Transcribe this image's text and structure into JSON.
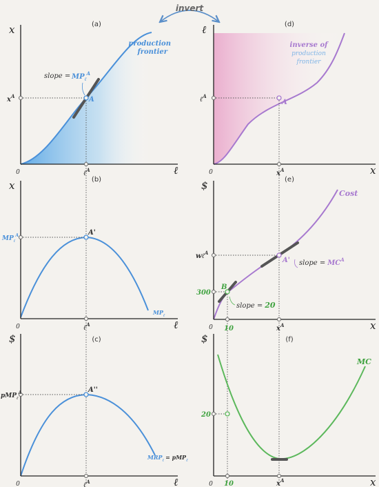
{
  "invert_label": "invert",
  "colors": {
    "blue": "#4a90d9",
    "purple": "#a779cf",
    "green": "#5cb85c"
  },
  "panels": {
    "a": {
      "label": "(a)",
      "y_axis": "x",
      "x_axis": "ℓ",
      "origin": "0",
      "curve_label_1": "production",
      "curve_label_2": "frontier",
      "slope_text": "slope =",
      "slope_mp": "MP",
      "slope_sub": "ℓ",
      "slope_sup": "A",
      "point": "A",
      "y_tick": "x",
      "y_tick_sup": "A",
      "x_tick": "ℓ",
      "x_tick_sup": "A"
    },
    "b": {
      "label": "(b)",
      "y_axis": "x",
      "x_axis": "ℓ",
      "origin": "0",
      "point": "A'",
      "y_tick": "MP",
      "y_tick_sub": "ℓ",
      "y_tick_sup": "A",
      "x_tick": "ℓ",
      "x_tick_sup": "A",
      "curve_label": "MP",
      "curve_sub": "ℓ"
    },
    "c": {
      "label": "(c)",
      "y_axis": "$",
      "x_axis": "ℓ",
      "origin": "0",
      "point": "A''",
      "y_tick": "pMP",
      "y_tick_sub": "ℓ",
      "y_tick_sup": "A",
      "x_tick": "ℓ",
      "x_tick_sup": "A",
      "curve_label_1": "MRP",
      "curve_label_sub": "ℓ",
      "curve_label_2": "= pMP",
      "curve_label_sub2": "ℓ"
    },
    "d": {
      "label": "(d)",
      "y_axis": "ℓ",
      "x_axis": "x",
      "origin": "0",
      "curve_label_1": "inverse of",
      "curve_label_2": "production",
      "curve_label_3": "frontier",
      "point": "A",
      "y_tick": "ℓ",
      "y_tick_sup": "A",
      "x_tick": "x",
      "x_tick_sup": "A"
    },
    "e": {
      "label": "(e)",
      "y_axis": "$",
      "x_axis": "x",
      "origin": "0",
      "curve_label": "Cost",
      "point_a": "A'",
      "point_b": "B",
      "y_tick_1": "wℓ",
      "y_tick_1_sup": "A",
      "y_tick_2": "300",
      "x_tick_1": "10",
      "x_tick_2": "x",
      "x_tick_2_sup": "A",
      "slope_a_text": "slope =",
      "slope_a_val": "MC",
      "slope_a_sup": "A",
      "slope_b_text": "slope =",
      "slope_b_val": "20"
    },
    "f": {
      "label": "(f)",
      "y_axis": "$",
      "x_axis": "x",
      "origin": "0",
      "curve_label": "MC",
      "y_tick": "20",
      "x_tick_1": "10",
      "x_tick_2": "x",
      "x_tick_2_sup": "A"
    }
  }
}
